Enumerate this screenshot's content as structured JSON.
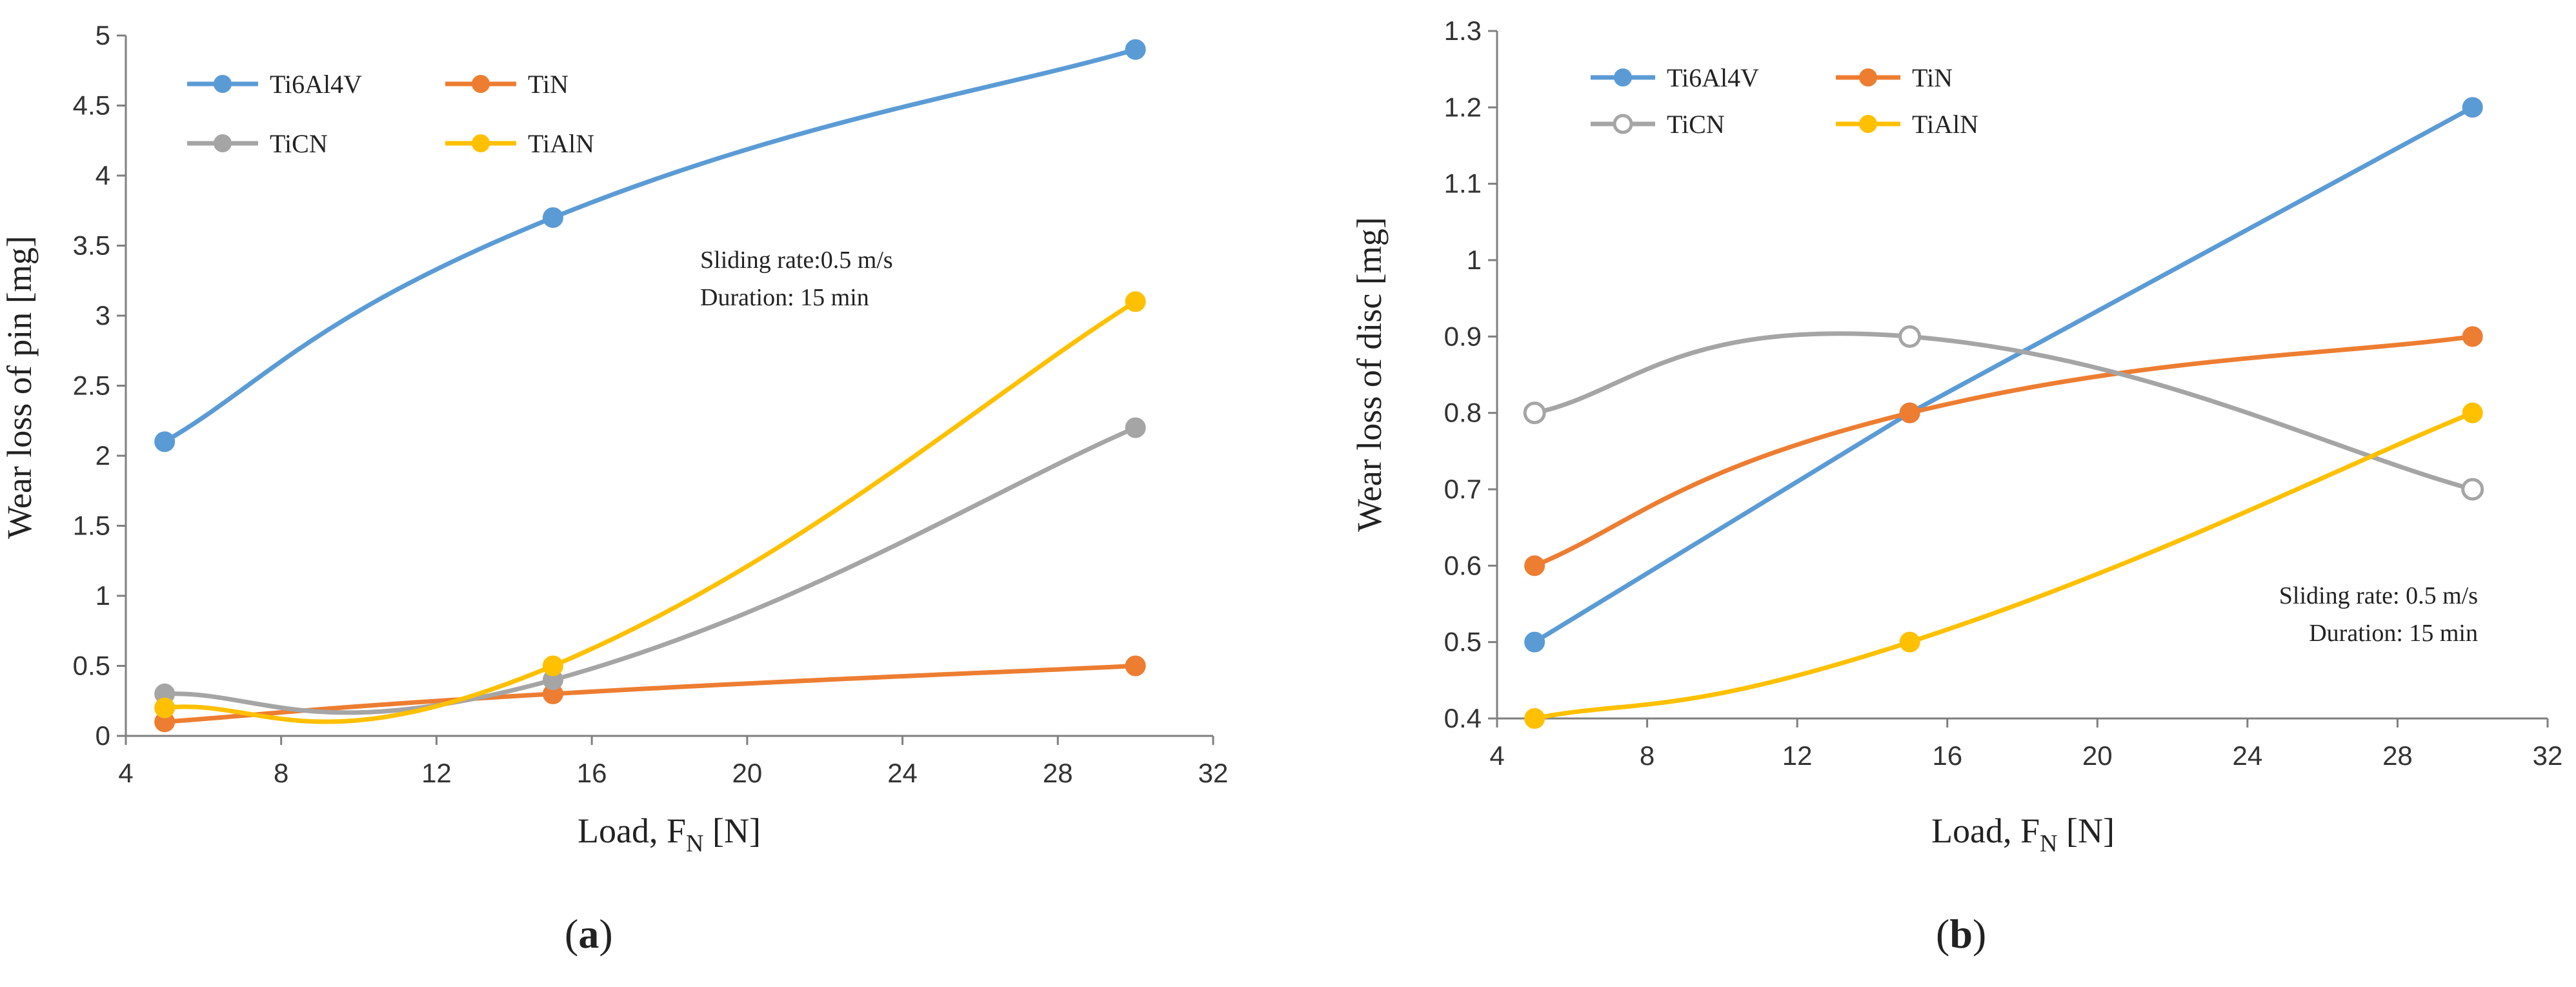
{
  "chart_data": [
    {
      "type": "line",
      "panel_label": "a",
      "xlabel": "Load, F",
      "xlabel_sub": "N",
      "xlabel_unit": " [N]",
      "ylabel": "Wear loss of pin [mg]",
      "xlim": [
        4,
        32
      ],
      "ylim": [
        0,
        5
      ],
      "xticks": [
        4,
        8,
        12,
        16,
        20,
        24,
        28,
        32
      ],
      "yticks": [
        0,
        0.5,
        1,
        1.5,
        2,
        2.5,
        3,
        3.5,
        4,
        4.5,
        5
      ],
      "x": [
        5,
        15,
        30
      ],
      "series": [
        {
          "name": "Ti6Al4V",
          "color": "#5b9bd5",
          "marker": "filled",
          "values": [
            2.1,
            3.7,
            4.9
          ]
        },
        {
          "name": "TiN",
          "color": "#ed7d31",
          "marker": "filled",
          "values": [
            0.1,
            0.3,
            0.5
          ]
        },
        {
          "name": "TiCN",
          "color": "#a5a5a5",
          "marker": "filled",
          "values": [
            0.3,
            0.4,
            2.2
          ]
        },
        {
          "name": "TiAlN",
          "color": "#ffc000",
          "marker": "filled",
          "values": [
            0.2,
            0.5,
            3.1
          ]
        }
      ],
      "annotation": [
        "Sliding rate:0.5 m/s",
        "Duration: 15 min"
      ]
    },
    {
      "type": "line",
      "panel_label": "b",
      "xlabel": "Load, F",
      "xlabel_sub": "N",
      "xlabel_unit": " [N]",
      "ylabel": "Wear loss of disc [mg]",
      "xlim": [
        4,
        32
      ],
      "ylim": [
        0.4,
        1.3
      ],
      "xticks": [
        4,
        8,
        12,
        16,
        20,
        24,
        28,
        32
      ],
      "yticks": [
        0.4,
        0.5,
        0.6,
        0.7,
        0.8,
        0.9,
        1,
        1.1,
        1.2,
        1.3
      ],
      "x": [
        5,
        15,
        30
      ],
      "series": [
        {
          "name": "Ti6Al4V",
          "color": "#5b9bd5",
          "marker": "filled",
          "values": [
            0.5,
            0.8,
            1.2
          ]
        },
        {
          "name": "TiN",
          "color": "#ed7d31",
          "marker": "filled",
          "values": [
            0.6,
            0.8,
            0.9
          ]
        },
        {
          "name": "TiCN",
          "color": "#a5a5a5",
          "marker": "open",
          "values": [
            0.8,
            0.9,
            0.7
          ]
        },
        {
          "name": "TiAlN",
          "color": "#ffc000",
          "marker": "filled",
          "values": [
            0.4,
            0.5,
            0.8
          ]
        }
      ],
      "annotation": [
        "Sliding rate: 0.5 m/s",
        "Duration: 15 min"
      ]
    }
  ]
}
